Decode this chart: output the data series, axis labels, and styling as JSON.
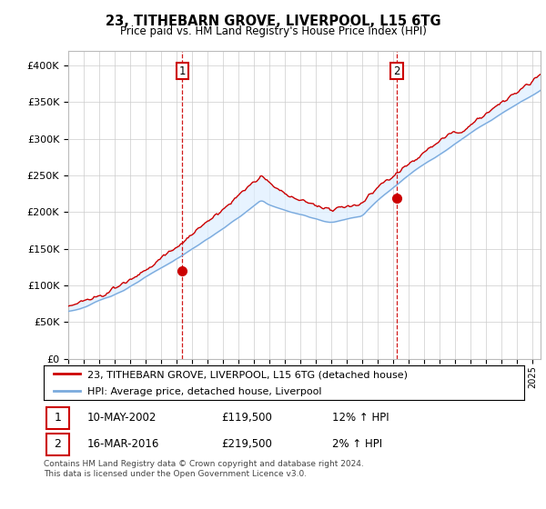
{
  "title": "23, TITHEBARN GROVE, LIVERPOOL, L15 6TG",
  "subtitle": "Price paid vs. HM Land Registry's House Price Index (HPI)",
  "legend_line1": "23, TITHEBARN GROVE, LIVERPOOL, L15 6TG (detached house)",
  "legend_line2": "HPI: Average price, detached house, Liverpool",
  "annotation1_label": "1",
  "annotation1_date": "10-MAY-2002",
  "annotation1_price": "£119,500",
  "annotation1_hpi": "12% ↑ HPI",
  "annotation2_label": "2",
  "annotation2_date": "16-MAR-2016",
  "annotation2_price": "£219,500",
  "annotation2_hpi": "2% ↑ HPI",
  "footer": "Contains HM Land Registry data © Crown copyright and database right 2024.\nThis data is licensed under the Open Government Licence v3.0.",
  "hpi_color": "#7aaadd",
  "hpi_fill_color": "#ddeeff",
  "price_color": "#cc0000",
  "vline_color": "#cc0000",
  "annotation_box_color": "#cc0000",
  "ylim_min": 0,
  "ylim_max": 420000,
  "yticks": [
    0,
    50000,
    100000,
    150000,
    200000,
    250000,
    300000,
    350000,
    400000
  ],
  "sale1_x": 2002.36,
  "sale1_y": 119500,
  "sale2_x": 2016.21,
  "sale2_y": 219500,
  "xmin": 1995,
  "xmax": 2025.5
}
